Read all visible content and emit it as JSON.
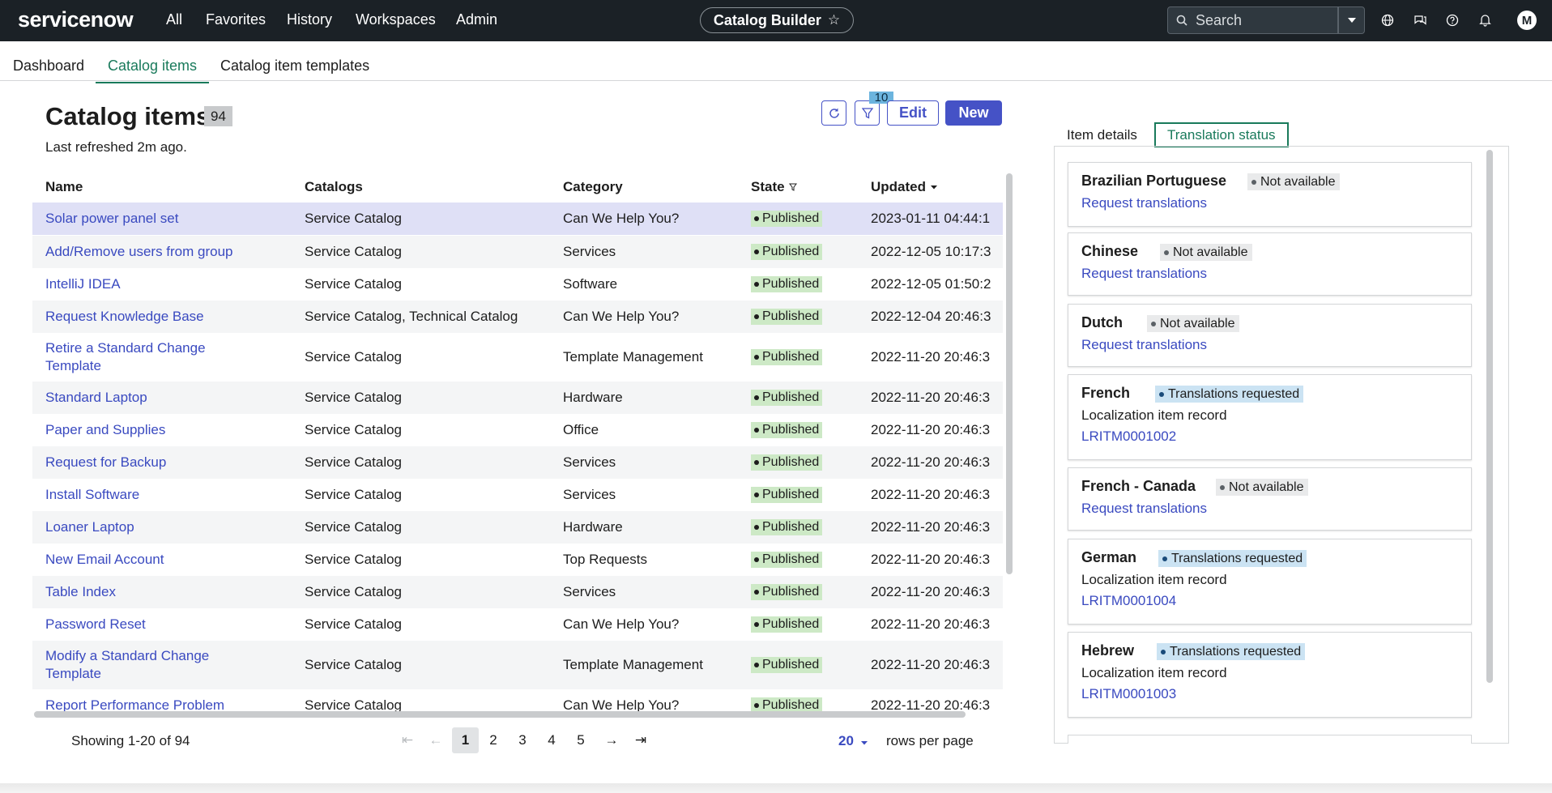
{
  "topbar": {
    "logo_text": "servicenow",
    "nav": [
      "All",
      "Favorites",
      "History",
      "Workspaces",
      "Admin"
    ],
    "app_name": "Catalog Builder",
    "search_placeholder": "Search",
    "avatar_initial": "M"
  },
  "subtabs": [
    "Dashboard",
    "Catalog items",
    "Catalog item templates"
  ],
  "list": {
    "title": "Catalog items",
    "count": "94",
    "refreshed": "Last refreshed 2m ago.",
    "filter_count": "10",
    "edit_label": "Edit",
    "new_label": "New",
    "columns": [
      "Name",
      "Catalogs",
      "Category",
      "State",
      "Updated"
    ],
    "rows": [
      {
        "name": "Solar power panel set",
        "catalogs": "Service Catalog",
        "category": "Can We Help You?",
        "state": "Published",
        "updated": "2023-01-11 04:44:1"
      },
      {
        "name": "Add/Remove users from group",
        "catalogs": "Service Catalog",
        "category": "Services",
        "state": "Published",
        "updated": "2022-12-05 10:17:3"
      },
      {
        "name": "IntelliJ IDEA",
        "catalogs": "Service Catalog",
        "category": "Software",
        "state": "Published",
        "updated": "2022-12-05 01:50:2"
      },
      {
        "name": "Request Knowledge Base",
        "catalogs": "Service Catalog, Technical Catalog",
        "category": "Can We Help You?",
        "state": "Published",
        "updated": "2022-12-04 20:46:3"
      },
      {
        "name": "Retire a Standard Change Template",
        "catalogs": "Service Catalog",
        "category": "Template Management",
        "state": "Published",
        "updated": "2022-11-20 20:46:3"
      },
      {
        "name": "Standard Laptop",
        "catalogs": "Service Catalog",
        "category": "Hardware",
        "state": "Published",
        "updated": "2022-11-20 20:46:3"
      },
      {
        "name": "Paper and Supplies",
        "catalogs": "Service Catalog",
        "category": "Office",
        "state": "Published",
        "updated": "2022-11-20 20:46:3"
      },
      {
        "name": "Request for Backup",
        "catalogs": "Service Catalog",
        "category": "Services",
        "state": "Published",
        "updated": "2022-11-20 20:46:3"
      },
      {
        "name": "Install Software",
        "catalogs": "Service Catalog",
        "category": "Services",
        "state": "Published",
        "updated": "2022-11-20 20:46:3"
      },
      {
        "name": "Loaner Laptop",
        "catalogs": "Service Catalog",
        "category": "Hardware",
        "state": "Published",
        "updated": "2022-11-20 20:46:3"
      },
      {
        "name": "New Email Account",
        "catalogs": "Service Catalog",
        "category": "Top Requests",
        "state": "Published",
        "updated": "2022-11-20 20:46:3"
      },
      {
        "name": "Table Index",
        "catalogs": "Service Catalog",
        "category": "Services",
        "state": "Published",
        "updated": "2022-11-20 20:46:3"
      },
      {
        "name": "Password Reset",
        "catalogs": "Service Catalog",
        "category": "Can We Help You?",
        "state": "Published",
        "updated": "2022-11-20 20:46:3"
      },
      {
        "name": "Modify a Standard Change Template",
        "catalogs": "Service Catalog",
        "category": "Template Management",
        "state": "Published",
        "updated": "2022-11-20 20:46:3"
      },
      {
        "name": "Report Performance Problem",
        "catalogs": "Service Catalog",
        "category": "Can We Help You?",
        "state": "Published",
        "updated": "2022-11-20 20:46:3"
      }
    ]
  },
  "pagination": {
    "showing": "Showing 1-20 of 94",
    "pages": [
      "1",
      "2",
      "3",
      "4",
      "5"
    ],
    "current": "1",
    "per_page": "20",
    "per_page_label": "rows per page"
  },
  "right_panel": {
    "tabs": [
      "Item details",
      "Translation status"
    ],
    "active_tab": "Translation status",
    "languages": [
      {
        "name": "Brazilian Portuguese",
        "status": "Not available",
        "link": "Request translations"
      },
      {
        "name": "Chinese",
        "status": "Not available",
        "link": "Request translations"
      },
      {
        "name": "Dutch",
        "status": "Not available",
        "link": "Request translations"
      },
      {
        "name": "French",
        "status": "Translations requested",
        "label": "Localization item record",
        "link": "LRITM0001002"
      },
      {
        "name": "French - Canada",
        "status": "Not available",
        "link": "Request translations"
      },
      {
        "name": "German",
        "status": "Translations requested",
        "label": "Localization item record",
        "link": "LRITM0001004"
      },
      {
        "name": "Hebrew",
        "status": "Translations requested",
        "label": "Localization item record",
        "link": "LRITM0001003"
      }
    ]
  },
  "colors": {
    "topbar": "#1b2126",
    "accent": "#4552c6",
    "active_tab": "#197a5b",
    "published_bg": "#cde9c6",
    "requested_bg": "#cbe3f3"
  }
}
